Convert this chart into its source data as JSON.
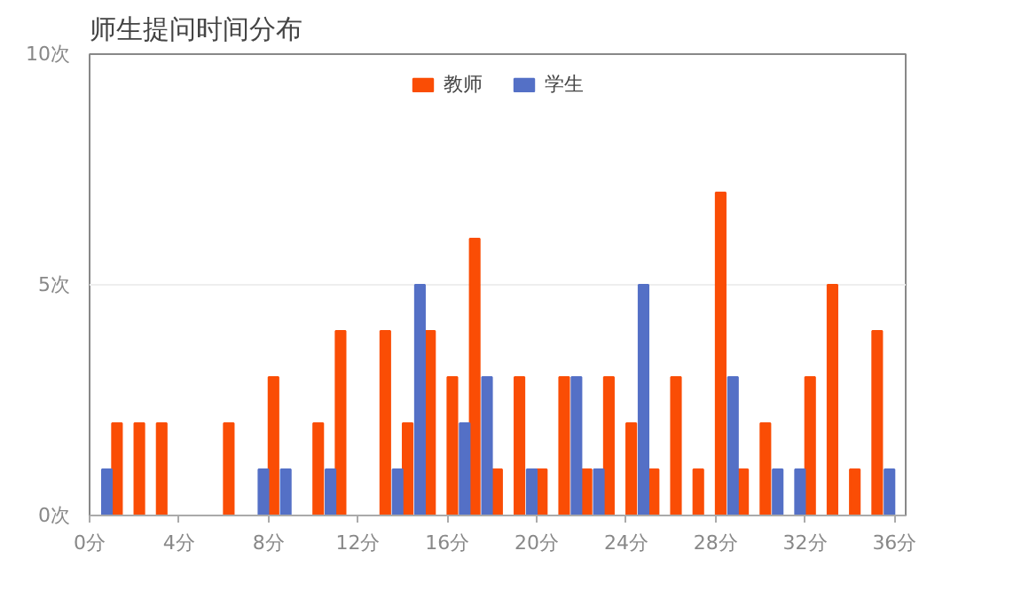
{
  "chart_data": {
    "type": "bar",
    "title": "师生提问时间分布",
    "x": [
      1,
      2,
      3,
      4,
      5,
      6,
      7,
      8,
      9,
      10,
      11,
      12,
      13,
      14,
      15,
      16,
      17,
      18,
      19,
      20,
      21,
      22,
      23,
      24,
      25,
      26,
      27,
      28,
      29,
      30,
      31,
      32,
      33,
      34,
      35,
      36
    ],
    "series": [
      {
        "name": "教师",
        "color": "#fa4d05",
        "values": [
          2,
          2,
          2,
          0,
          0,
          2,
          0,
          3,
          0,
          2,
          4,
          0,
          4,
          2,
          4,
          3,
          6,
          1,
          3,
          1,
          3,
          1,
          3,
          2,
          1,
          3,
          1,
          7,
          1,
          2,
          0,
          3,
          5,
          1,
          4,
          0
        ]
      },
      {
        "name": "学生",
        "color": "#5470c6",
        "values": [
          1,
          0,
          0,
          0,
          0,
          0,
          0,
          1,
          1,
          0,
          1,
          0,
          0,
          1,
          5,
          0,
          2,
          3,
          0,
          1,
          0,
          3,
          1,
          0,
          5,
          0,
          0,
          0,
          3,
          0,
          1,
          1,
          0,
          0,
          0,
          1
        ]
      }
    ],
    "xlim": [
      0,
      36.5
    ],
    "xticks": [
      {
        "value": 0,
        "label": "0分"
      },
      {
        "value": 4,
        "label": "4分"
      },
      {
        "value": 8,
        "label": "8分"
      },
      {
        "value": 12,
        "label": "12分"
      },
      {
        "value": 16,
        "label": "16分"
      },
      {
        "value": 20,
        "label": "20分"
      },
      {
        "value": 24,
        "label": "24分"
      },
      {
        "value": 28,
        "label": "28分"
      },
      {
        "value": 32,
        "label": "32分"
      },
      {
        "value": 36,
        "label": "36分"
      }
    ],
    "ylim": [
      0,
      10
    ],
    "yticks": [
      {
        "value": 0,
        "label": "0次"
      },
      {
        "value": 5,
        "label": "5次"
      },
      {
        "value": 10,
        "label": "10次"
      }
    ],
    "grid": "y",
    "legend": "top"
  }
}
